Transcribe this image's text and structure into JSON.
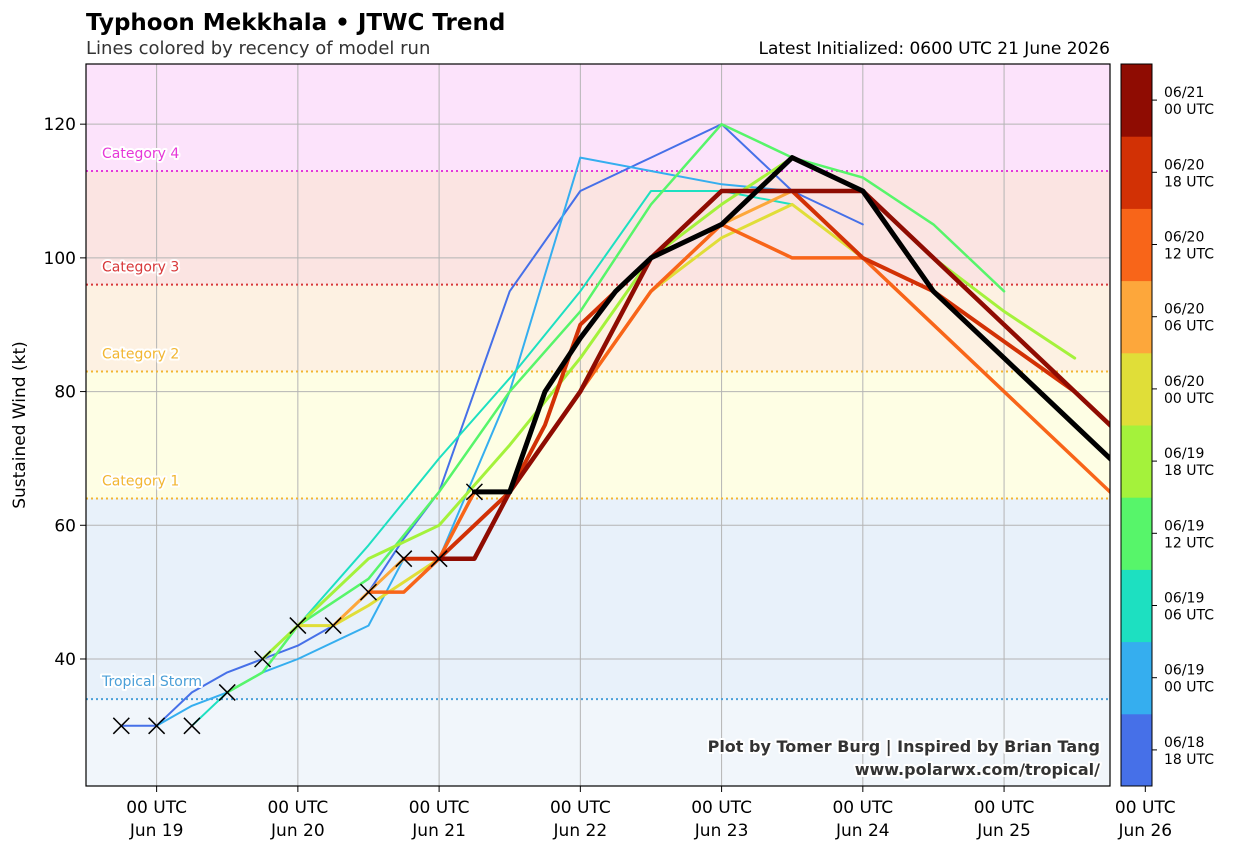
{
  "chart_data": {
    "type": "line",
    "title": "Typhoon Mekkhala • JTWC Trend",
    "subtitle": "Lines colored by recency of model run",
    "right_title": "Latest Initialized: 0600 UTC 21 June 2026",
    "ylabel": "Sustained Wind (kt)",
    "ylim": [
      21,
      129
    ],
    "xlim_hours": [
      -12,
      162
    ],
    "y_ticks": [
      40,
      60,
      80,
      100,
      120
    ],
    "x_ticks": [
      {
        "hours": 0,
        "line1": "00 UTC",
        "line2": "Jun 19"
      },
      {
        "hours": 24,
        "line1": "00 UTC",
        "line2": "Jun 20"
      },
      {
        "hours": 48,
        "line1": "00 UTC",
        "line2": "Jun 21"
      },
      {
        "hours": 72,
        "line1": "00 UTC",
        "line2": "Jun 22"
      },
      {
        "hours": 96,
        "line1": "00 UTC",
        "line2": "Jun 23"
      },
      {
        "hours": 120,
        "line1": "00 UTC",
        "line2": "Jun 24"
      },
      {
        "hours": 144,
        "line1": "00 UTC",
        "line2": "Jun 25"
      },
      {
        "hours": 168,
        "line1": "00 UTC",
        "line2": "Jun 26"
      }
    ],
    "grid": true,
    "categories": [
      {
        "label": "Tropical Storm",
        "threshold": 34,
        "color": "#4a9fd8",
        "band_from": 21,
        "band_to": 34,
        "band_color": "#f1f6fb"
      },
      {
        "label": "",
        "threshold": 34,
        "color": "#4a9fd8",
        "band_from": 34,
        "band_to": 64,
        "band_color": "#e8f1fa"
      },
      {
        "label": "Category 1",
        "threshold": 64,
        "color": "#f2b632",
        "band_from": 64,
        "band_to": 83,
        "band_color": "#fefee4"
      },
      {
        "label": "Category 2",
        "threshold": 83,
        "color": "#f2b632",
        "band_from": 83,
        "band_to": 96,
        "band_color": "#fdf1e2"
      },
      {
        "label": "Category 3",
        "threshold": 96,
        "color": "#d8383a",
        "band_from": 96,
        "band_to": 113,
        "band_color": "#fbe4e2"
      },
      {
        "label": "Category 4",
        "threshold": 113,
        "color": "#e639d8",
        "band_from": 113,
        "band_to": 129,
        "band_color": "#fce3fb"
      }
    ],
    "colorbar": {
      "colors": [
        "#4670e8",
        "#35aeef",
        "#1de0c1",
        "#57f56a",
        "#a4f23b",
        "#e0de38",
        "#fda73b",
        "#f86519",
        "#d23105",
        "#8f0c02"
      ],
      "labels": [
        [
          "06/18",
          "18 UTC"
        ],
        [
          "06/19",
          "00 UTC"
        ],
        [
          "06/19",
          "06 UTC"
        ],
        [
          "06/19",
          "12 UTC"
        ],
        [
          "06/19",
          "18 UTC"
        ],
        [
          "06/20",
          "00 UTC"
        ],
        [
          "06/20",
          "06 UTC"
        ],
        [
          "06/20",
          "12 UTC"
        ],
        [
          "06/20",
          "18 UTC"
        ],
        [
          "06/21",
          "00 UTC"
        ]
      ]
    },
    "observed": [
      {
        "h": -6,
        "v": 30
      },
      {
        "h": 0,
        "v": 30
      },
      {
        "h": 6,
        "v": 30
      },
      {
        "h": 12,
        "v": 35
      },
      {
        "h": 18,
        "v": 40
      },
      {
        "h": 24,
        "v": 45
      },
      {
        "h": 30,
        "v": 45
      },
      {
        "h": 36,
        "v": 50
      },
      {
        "h": 42,
        "v": 55
      },
      {
        "h": 48,
        "v": 55
      },
      {
        "h": 54,
        "v": 65
      }
    ],
    "series": [
      {
        "name": "06/18 18 UTC",
        "color": "#4670e8",
        "width": 2,
        "points": [
          [
            -6,
            30
          ],
          [
            0,
            30
          ],
          [
            6,
            35
          ],
          [
            12,
            38
          ],
          [
            18,
            40
          ],
          [
            24,
            42
          ],
          [
            30,
            45
          ],
          [
            36,
            50
          ],
          [
            42,
            58
          ],
          [
            48,
            65
          ],
          [
            60,
            95
          ],
          [
            72,
            110
          ],
          [
            84,
            115
          ],
          [
            96,
            120
          ],
          [
            108,
            110
          ],
          [
            120,
            105
          ]
        ]
      },
      {
        "name": "06/19 00 UTC",
        "color": "#35aeef",
        "width": 2,
        "points": [
          [
            0,
            30
          ],
          [
            6,
            33
          ],
          [
            12,
            35
          ],
          [
            18,
            38
          ],
          [
            24,
            40
          ],
          [
            36,
            45
          ],
          [
            42,
            55
          ],
          [
            48,
            55
          ],
          [
            60,
            80
          ],
          [
            72,
            115
          ],
          [
            84,
            113
          ],
          [
            96,
            111
          ],
          [
            108,
            110
          ]
        ]
      },
      {
        "name": "06/19 06 UTC",
        "color": "#1de0c1",
        "width": 2,
        "points": [
          [
            6,
            30
          ],
          [
            12,
            35
          ],
          [
            18,
            38
          ],
          [
            24,
            45
          ],
          [
            36,
            57
          ],
          [
            48,
            70
          ],
          [
            60,
            82
          ],
          [
            72,
            95
          ],
          [
            84,
            110
          ],
          [
            96,
            110
          ],
          [
            108,
            108
          ],
          [
            120,
            100
          ],
          [
            132,
            95
          ]
        ]
      },
      {
        "name": "06/19 12 UTC",
        "color": "#57f56a",
        "width": 2.5,
        "points": [
          [
            12,
            35
          ],
          [
            18,
            38
          ],
          [
            24,
            45
          ],
          [
            36,
            52
          ],
          [
            48,
            65
          ],
          [
            60,
            80
          ],
          [
            72,
            92
          ],
          [
            84,
            108
          ],
          [
            96,
            120
          ],
          [
            108,
            115
          ],
          [
            120,
            112
          ],
          [
            132,
            105
          ],
          [
            144,
            95
          ]
        ]
      },
      {
        "name": "06/19 18 UTC",
        "color": "#a4f23b",
        "width": 3,
        "points": [
          [
            18,
            40
          ],
          [
            24,
            45
          ],
          [
            36,
            55
          ],
          [
            48,
            60
          ],
          [
            60,
            72
          ],
          [
            72,
            85
          ],
          [
            84,
            100
          ],
          [
            96,
            108
          ],
          [
            108,
            115
          ],
          [
            120,
            110
          ],
          [
            132,
            100
          ],
          [
            144,
            92
          ],
          [
            156,
            85
          ]
        ]
      },
      {
        "name": "06/20 00 UTC",
        "color": "#e0de38",
        "width": 3,
        "points": [
          [
            24,
            45
          ],
          [
            30,
            45
          ],
          [
            36,
            48
          ],
          [
            48,
            55
          ],
          [
            60,
            65
          ],
          [
            72,
            80
          ],
          [
            84,
            95
          ],
          [
            96,
            103
          ],
          [
            108,
            108
          ],
          [
            120,
            100
          ]
        ]
      },
      {
        "name": "06/20 06 UTC",
        "color": "#fda73b",
        "width": 3,
        "points": [
          [
            30,
            45
          ],
          [
            36,
            50
          ],
          [
            42,
            55
          ],
          [
            48,
            55
          ],
          [
            60,
            65
          ],
          [
            72,
            80
          ],
          [
            84,
            95
          ],
          [
            96,
            105
          ],
          [
            108,
            110
          ]
        ]
      },
      {
        "name": "06/20 12 UTC",
        "color": "#f86519",
        "width": 3.5,
        "points": [
          [
            36,
            50
          ],
          [
            42,
            50
          ],
          [
            48,
            55
          ],
          [
            54,
            65
          ],
          [
            60,
            65
          ],
          [
            72,
            80
          ],
          [
            84,
            95
          ],
          [
            96,
            105
          ],
          [
            108,
            100
          ],
          [
            120,
            100
          ],
          [
            132,
            90
          ],
          [
            156,
            70
          ],
          [
            168,
            60
          ]
        ]
      },
      {
        "name": "06/20 18 UTC",
        "color": "#d23105",
        "width": 4,
        "points": [
          [
            42,
            55
          ],
          [
            48,
            55
          ],
          [
            54,
            60
          ],
          [
            60,
            65
          ],
          [
            66,
            75
          ],
          [
            72,
            90
          ],
          [
            84,
            100
          ],
          [
            96,
            110
          ],
          [
            108,
            110
          ],
          [
            120,
            100
          ],
          [
            132,
            95
          ],
          [
            156,
            80
          ],
          [
            168,
            70
          ],
          [
            180,
            60
          ]
        ]
      },
      {
        "name": "06/21 00 UTC",
        "color": "#8f0c02",
        "width": 4.5,
        "points": [
          [
            48,
            55
          ],
          [
            54,
            55
          ],
          [
            60,
            65
          ],
          [
            72,
            80
          ],
          [
            84,
            100
          ],
          [
            96,
            110
          ],
          [
            108,
            110
          ],
          [
            120,
            110
          ],
          [
            132,
            100
          ],
          [
            144,
            90
          ],
          [
            156,
            80
          ],
          [
            168,
            70
          ],
          [
            180,
            50
          ]
        ]
      },
      {
        "name": "06/21 06 UTC",
        "color": "#000000",
        "width": 5,
        "points": [
          [
            54,
            65
          ],
          [
            60,
            65
          ],
          [
            66,
            80
          ],
          [
            72,
            88
          ],
          [
            78,
            95
          ],
          [
            84,
            100
          ],
          [
            96,
            105
          ],
          [
            108,
            115
          ],
          [
            120,
            110
          ],
          [
            132,
            95
          ],
          [
            144,
            85
          ],
          [
            156,
            75
          ],
          [
            168,
            65
          ],
          [
            186,
            45
          ]
        ]
      }
    ],
    "credit_line1": "Plot by Tomer Burg | Inspired by Brian Tang",
    "credit_line2": "www.polarwx.com/tropical/"
  }
}
